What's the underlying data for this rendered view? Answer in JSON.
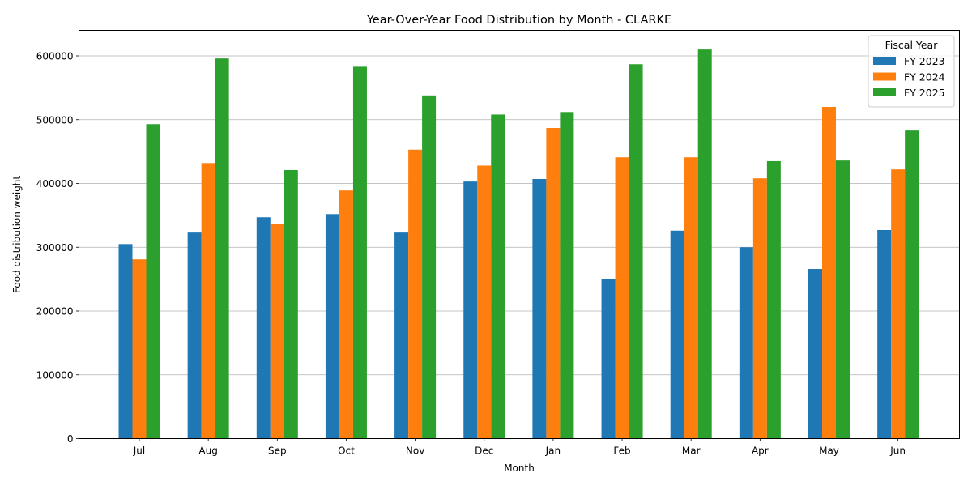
{
  "chart_data": {
    "type": "bar",
    "title": "Year-Over-Year Food Distribution by Month - CLARKE",
    "xlabel": "Month",
    "ylabel": "Food distribution weight",
    "ylim": [
      0,
      640000
    ],
    "yticks": [
      0,
      100000,
      200000,
      300000,
      400000,
      500000,
      600000
    ],
    "ytick_labels": [
      "0",
      "100000",
      "200000",
      "300000",
      "400000",
      "500000",
      "600000"
    ],
    "grid": "y",
    "legend_position": "top-right",
    "legend_title": "Fiscal Year",
    "categories": [
      "Jul",
      "Aug",
      "Sep",
      "Oct",
      "Nov",
      "Dec",
      "Jan",
      "Feb",
      "Mar",
      "Apr",
      "May",
      "Jun"
    ],
    "series": [
      {
        "name": "FY 2023",
        "color": "#1f77b4",
        "values": [
          305000,
          323000,
          347000,
          352000,
          323000,
          403000,
          407000,
          250000,
          326000,
          300000,
          266000,
          327000
        ]
      },
      {
        "name": "FY 2024",
        "color": "#ff7f0e",
        "values": [
          281000,
          432000,
          336000,
          389000,
          453000,
          428000,
          487000,
          441000,
          441000,
          408000,
          520000,
          422000
        ]
      },
      {
        "name": "FY 2025",
        "color": "#2ca02c",
        "values": [
          493000,
          596000,
          421000,
          583000,
          538000,
          508000,
          512000,
          587000,
          610000,
          435000,
          436000,
          483000
        ]
      }
    ]
  }
}
